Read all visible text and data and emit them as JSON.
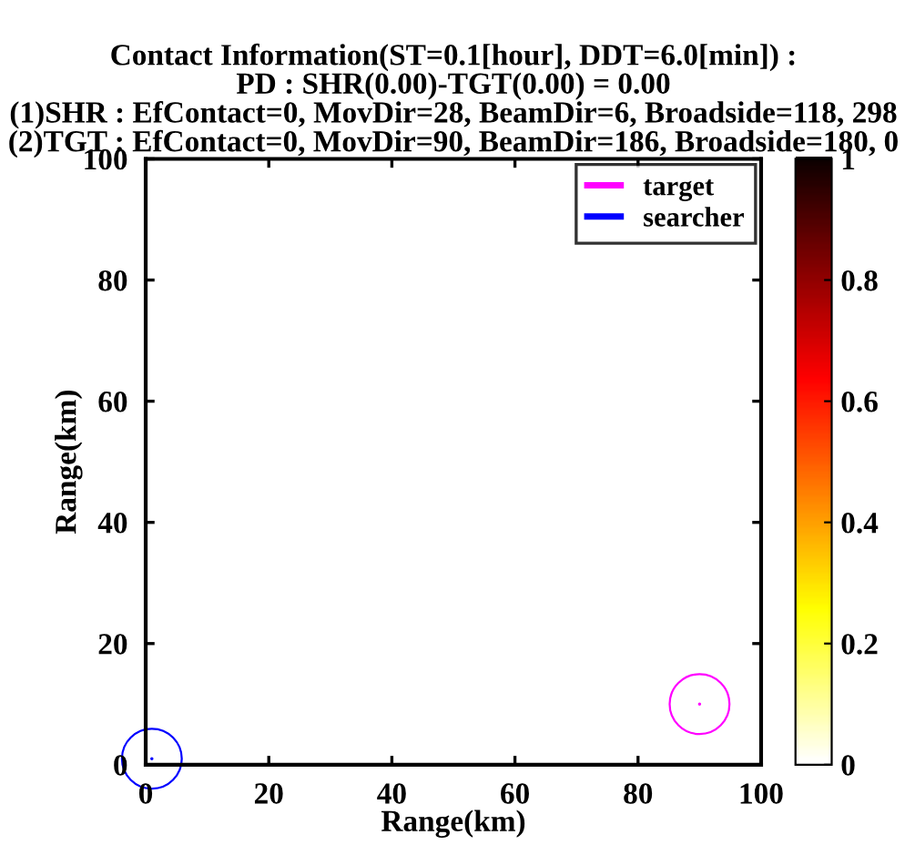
{
  "chart_data": {
    "type": "scatter",
    "title": "Contact Information(ST=0.1[hour], DDT=6.0[min]) :\nPD : SHR(0.00)-TGT(0.00) = 0.00\n(1)SHR : EfContact=0, MovDir=28, BeamDir=6, Broadside=118, 298\n(2)TGT : EfContact=0, MovDir=90, BeamDir=186, Broadside=180, 0",
    "xlabel": "Range(km)",
    "ylabel": "Range(km)",
    "xlim": [
      0,
      100
    ],
    "ylim": [
      0,
      100
    ],
    "xticks": [
      0,
      20,
      40,
      60,
      80,
      100
    ],
    "yticks": [
      0,
      20,
      40,
      60,
      80,
      100
    ],
    "clim": [
      0,
      1
    ],
    "cticks": [
      0,
      0.2,
      0.4,
      0.6,
      0.8,
      1
    ],
    "grid": false,
    "legend": "top right",
    "marker": "circle",
    "series": [
      {
        "name": "target",
        "color": "#ff00ff",
        "x": [
          90
        ],
        "values": [
          10
        ]
      },
      {
        "name": "searcher",
        "color": "#0000ff",
        "x": [
          1
        ],
        "values": [
          1
        ]
      }
    ]
  }
}
